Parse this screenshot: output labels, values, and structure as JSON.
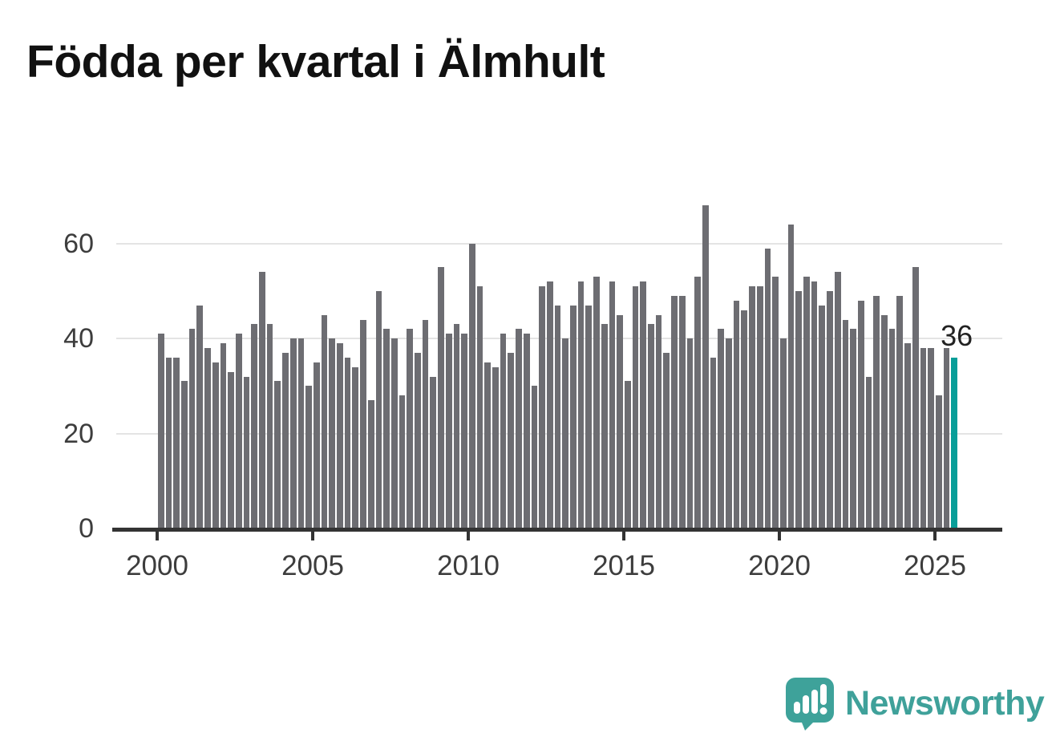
{
  "title": "Födda per kvartal i Älmhult",
  "chart_data": {
    "type": "bar",
    "title": "Födda per kvartal i Älmhult",
    "x_start": "2000-Q1",
    "x_end": "2025-Q3",
    "frequency": "quarterly",
    "values": [
      41,
      36,
      36,
      31,
      42,
      47,
      38,
      35,
      39,
      33,
      41,
      32,
      43,
      54,
      43,
      31,
      37,
      40,
      40,
      30,
      35,
      45,
      40,
      39,
      36,
      34,
      44,
      27,
      50,
      42,
      40,
      28,
      42,
      37,
      44,
      32,
      55,
      41,
      43,
      41,
      60,
      51,
      35,
      34,
      41,
      37,
      42,
      41,
      30,
      51,
      52,
      47,
      40,
      47,
      52,
      47,
      53,
      43,
      52,
      45,
      31,
      51,
      52,
      43,
      45,
      37,
      49,
      49,
      40,
      53,
      68,
      36,
      42,
      40,
      48,
      46,
      51,
      51,
      59,
      53,
      40,
      64,
      50,
      53,
      52,
      47,
      50,
      54,
      44,
      42,
      48,
      32,
      49,
      45,
      42,
      49,
      39,
      55,
      38,
      38,
      28,
      38,
      36
    ],
    "highlight": {
      "index": 102,
      "value": 36,
      "label": "36",
      "color": "#089e99"
    },
    "bar_color": "#6d6d72",
    "yticks": [
      0,
      20,
      40,
      60
    ],
    "xticks": [
      2000,
      2005,
      2010,
      2015,
      2020,
      2025
    ],
    "ylim": [
      0,
      68
    ],
    "grid": true,
    "legend": "none"
  },
  "branding": {
    "name": "Newsworthy",
    "color": "#3fa19a",
    "icon": "newsworthy-speech-bubble-chart-icon"
  }
}
